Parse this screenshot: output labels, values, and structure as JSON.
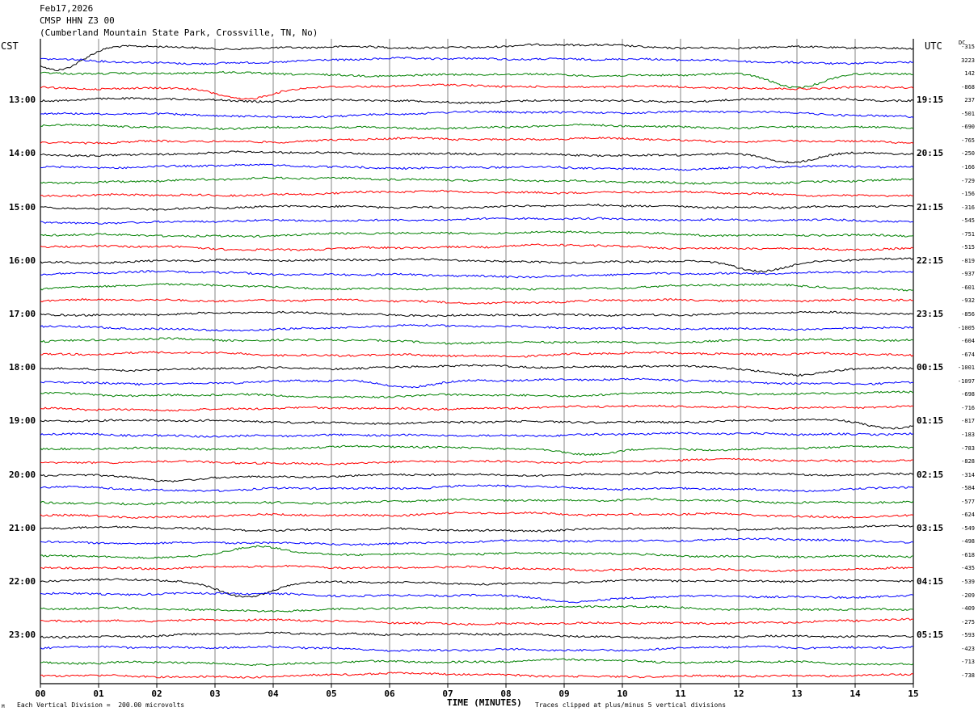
{
  "header": {
    "date": "Feb17,2026",
    "station": "CMSP HHN Z3 00",
    "location": "(Cumberland Mountain State Park, Crossville, TN, No)"
  },
  "left_zone_label": "CST",
  "right_zone_label": "UTC",
  "dc_header": "DC",
  "footer": {
    "vertical_division": "Each Vertical Division =  200.00 microvolts",
    "clip_note": "Traces clipped at plus/minus 5 vertical divisions",
    "corner_mark": "M"
  },
  "chart_data": {
    "type": "line",
    "subtype": "helicorder",
    "xlabel": "TIME (MINUTES)",
    "x_ticks": [
      "00",
      "01",
      "02",
      "03",
      "04",
      "05",
      "06",
      "07",
      "08",
      "09",
      "10",
      "11",
      "12",
      "13",
      "14",
      "15"
    ],
    "xlim": [
      0,
      15
    ],
    "trace_colors": [
      "#ff0000",
      "#000000",
      "#0000ff",
      "#008000"
    ],
    "trace_count": 48,
    "hour_labels_left": [
      "13:00",
      "14:00",
      "15:00",
      "16:00",
      "17:00",
      "18:00",
      "19:00",
      "20:00",
      "21:00",
      "22:00",
      "23:00"
    ],
    "hour_labels_right": [
      "19:15",
      "20:15",
      "21:15",
      "22:15",
      "23:15",
      "00:15",
      "01:15",
      "02:15",
      "03:15",
      "04:15",
      "05:15"
    ],
    "dc_offsets": [
      "-315",
      "3223",
      "142",
      "-868",
      "237",
      "-501",
      "-690",
      "-765",
      "-250",
      "-166",
      "-729",
      "-156",
      "-316",
      "-545",
      "-751",
      "-515",
      "-819",
      "-937",
      "-601",
      "-932",
      "-856",
      "-1005",
      "-604",
      "-674",
      "-1001",
      "-1097",
      "-698",
      "-716",
      "-817",
      "-183",
      "-783",
      "-828",
      "-314",
      "-584",
      "-577",
      "-624",
      "-549",
      "-498",
      "-618",
      "-435",
      "-539",
      "-209",
      "-409",
      "-275",
      "-593",
      "-423",
      "-713",
      "-738"
    ],
    "events": [
      {
        "trace": 2,
        "minute": 13.0,
        "depth": 18
      },
      {
        "trace": 0,
        "minute": 0.3,
        "depth": 30
      },
      {
        "trace": 3,
        "minute": 3.5,
        "depth": 16
      },
      {
        "trace": 8,
        "minute": 12.9,
        "depth": 12
      },
      {
        "trace": 16,
        "minute": 12.4,
        "depth": 12
      },
      {
        "trace": 24,
        "minute": 13.0,
        "depth": 8
      },
      {
        "trace": 25,
        "minute": 6.3,
        "depth": 8
      },
      {
        "trace": 28,
        "minute": 14.6,
        "depth": 10
      },
      {
        "trace": 30,
        "minute": 9.4,
        "depth": 8
      },
      {
        "trace": 32,
        "minute": 2.2,
        "depth": 8
      },
      {
        "trace": 38,
        "minute": 3.7,
        "depth": -12
      },
      {
        "trace": 40,
        "minute": 3.5,
        "depth": 18
      },
      {
        "trace": 41,
        "minute": 9.2,
        "depth": 6
      }
    ]
  }
}
